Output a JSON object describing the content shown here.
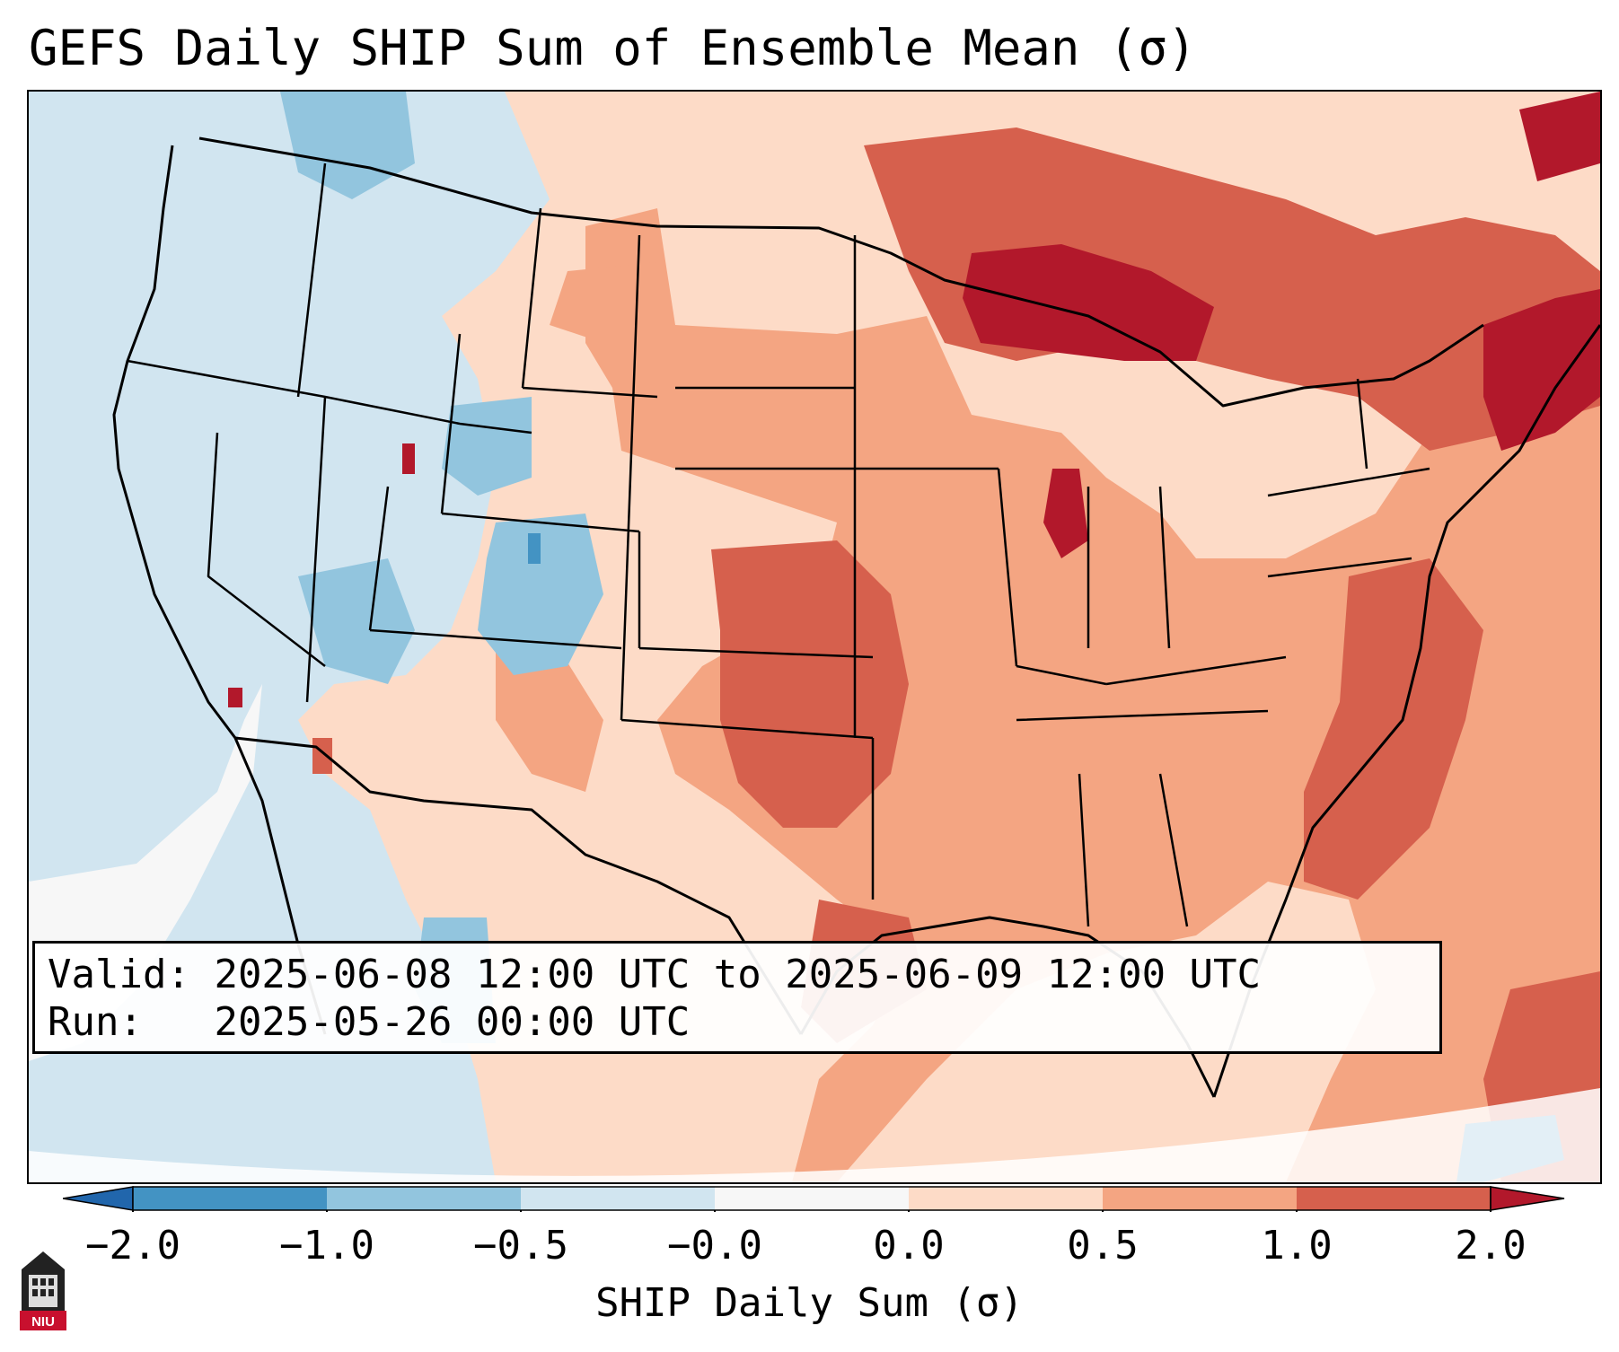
{
  "title": "GEFS Daily SHIP Sum of Ensemble Mean (σ)",
  "info": {
    "valid_label": "Valid:",
    "valid_value": "2025-06-08 12:00 UTC to 2025-06-09 12:00 UTC",
    "run_label": "Run:",
    "run_value": "2025-05-26 00:00 UTC"
  },
  "colorbar": {
    "label": "SHIP Daily Sum (σ)",
    "ticks": [
      "−2.0",
      "−1.0",
      "−0.5",
      "−0.0",
      "0.0",
      "0.5",
      "1.0",
      "2.0"
    ],
    "bins": [
      {
        "range": "< −2.0",
        "color": "#2166ac"
      },
      {
        "range": "−2.0 to −1.0",
        "color": "#4393c3"
      },
      {
        "range": "−1.0 to −0.5",
        "color": "#92c5de"
      },
      {
        "range": "−0.5 to −0.0",
        "color": "#d1e5f0"
      },
      {
        "range": "−0.0 to 0.0",
        "color": "#f7f7f7"
      },
      {
        "range": "0.0 to 0.5",
        "color": "#fddbc7"
      },
      {
        "range": "0.5 to 1.0",
        "color": "#f4a582"
      },
      {
        "range": "1.0 to 2.0",
        "color": "#d6604d"
      },
      {
        "range": "> 2.0",
        "color": "#b2182b"
      }
    ]
  },
  "logo_text": "NIU",
  "map": {
    "projection": "Lambert Conformal",
    "region": "Contiguous United States",
    "features": [
      "coastlines",
      "state borders",
      "country borders"
    ]
  }
}
